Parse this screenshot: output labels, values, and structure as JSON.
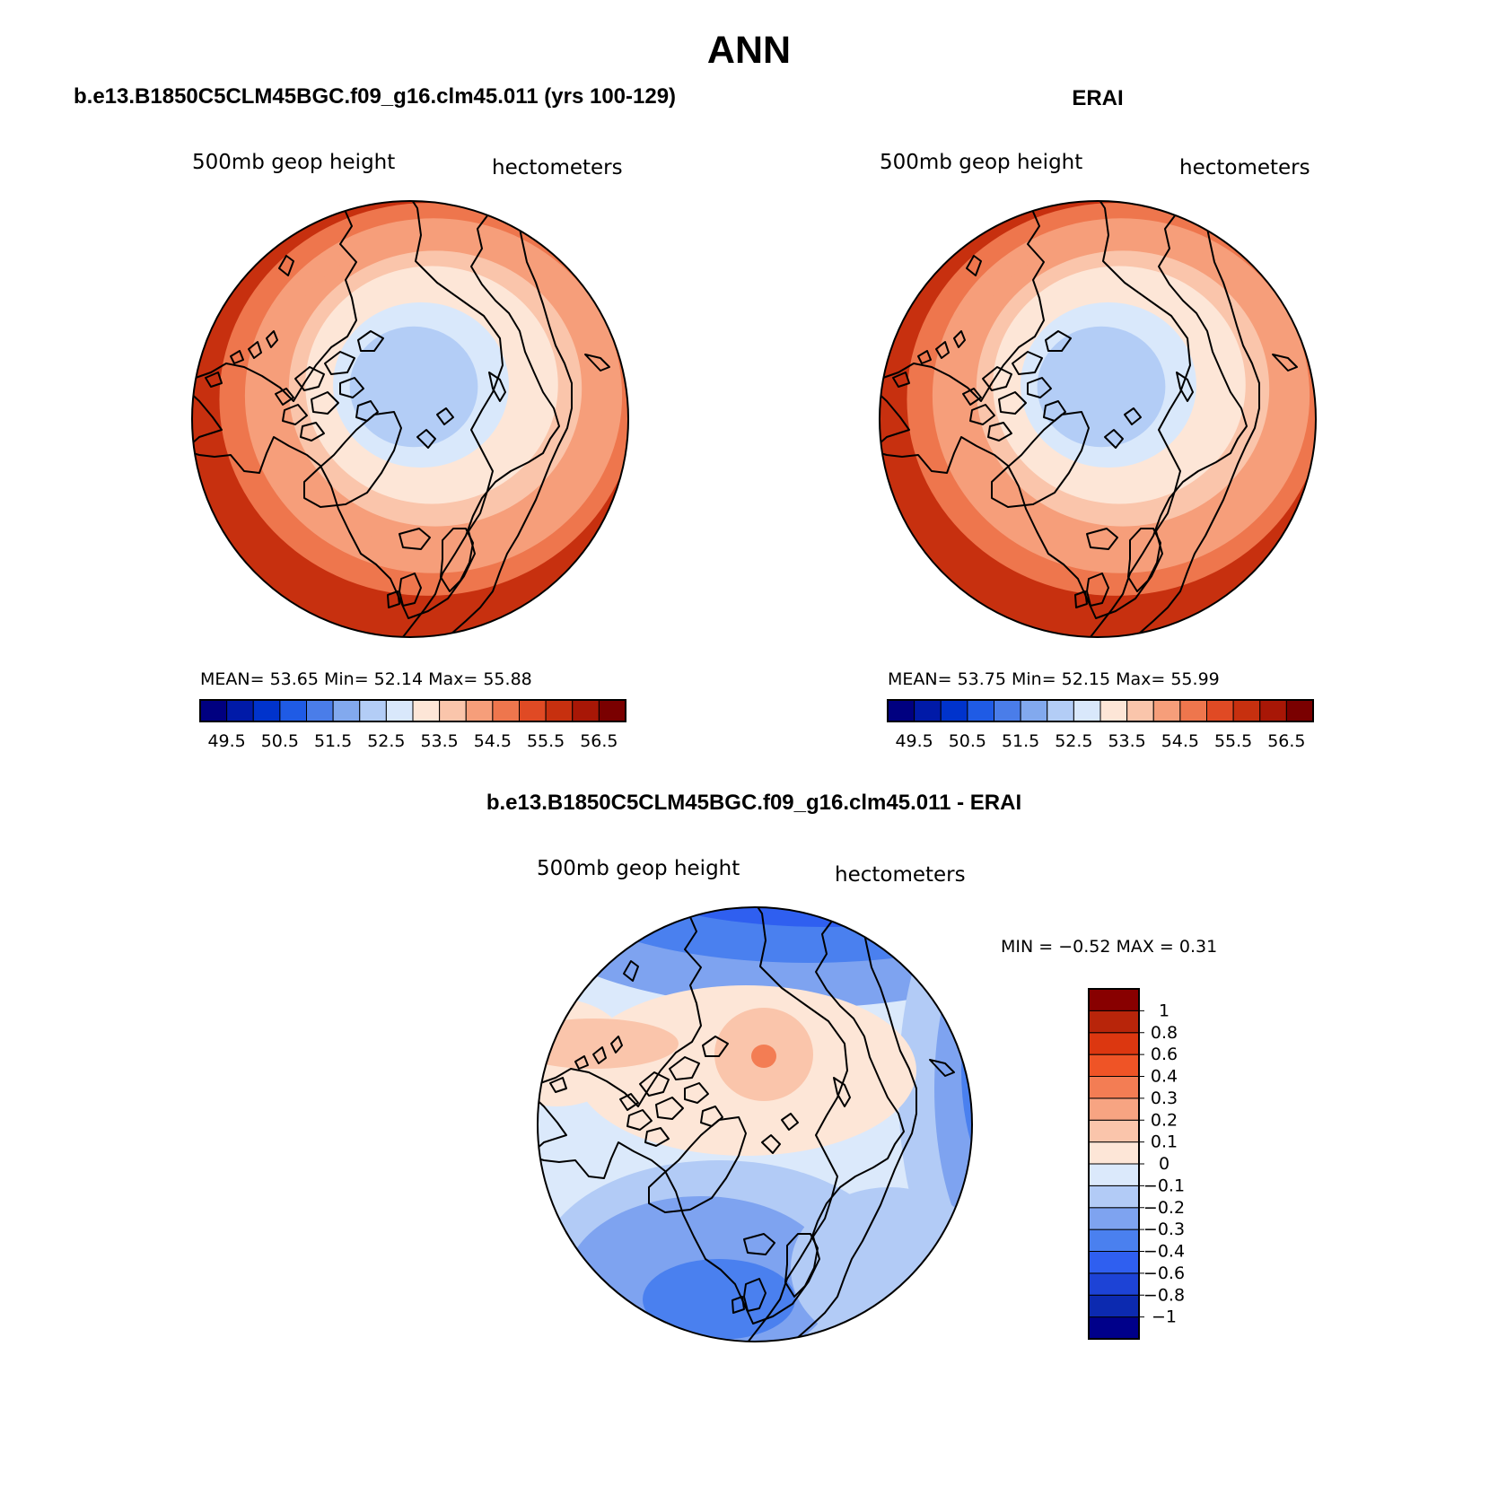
{
  "page": {
    "main_title": "ANN",
    "colors": {
      "background": "#ffffff",
      "outline": "#000000"
    }
  },
  "panels": [
    {
      "title": "b.e13.B1850C5CLM45BGC.f09_g16.clm45.011 (yrs 100-129)",
      "variable": "500mb geop height",
      "units": "hectometers",
      "stats": {
        "mean_label": "MEAN=",
        "mean": "53.65",
        "min_label": "Min=",
        "min": "52.14",
        "max_label": "Max=",
        "max": "55.88"
      },
      "field": {
        "projection": "north-polar-stereographic",
        "low_center": "Canadian Arctic / Baffin",
        "trough_east": "Japan",
        "ring_values": [
          55.5,
          55.0,
          54.5,
          54.0,
          53.5,
          53.0,
          52.5
        ]
      }
    },
    {
      "title": "ERAI",
      "variable": "500mb geop height",
      "units": "hectometers",
      "stats": {
        "mean_label": "MEAN=",
        "mean": "53.75",
        "min_label": "Min=",
        "min": "52.15",
        "max_label": "Max=",
        "max": "55.99"
      },
      "field": {
        "projection": "north-polar-stereographic",
        "low_center": "Canadian Arctic / Baffin",
        "trough_east": "Japan",
        "ring_values": [
          55.5,
          55.0,
          54.5,
          54.0,
          53.5,
          53.0,
          52.5
        ]
      }
    },
    {
      "title": "b.e13.B1850C5CLM45BGC.f09_g16.clm45.011 - ERAI",
      "variable": "500mb geop height",
      "units": "hectometers",
      "stats": {
        "min_label": "MIN =",
        "min": "−0.52",
        "max_label": "MAX =",
        "max": "0.31"
      },
      "field": {
        "projection": "north-polar-stereographic",
        "positive_center": "Arctic Ocean / Siberia",
        "negative_regions": [
          "North Pacific",
          "North Atlantic / Greenland"
        ]
      }
    }
  ],
  "colorbars": {
    "abs": {
      "colors": [
        "#000080",
        "#001aa8",
        "#0033cc",
        "#1f5be5",
        "#4a7de9",
        "#82a9ee",
        "#b3cdf6",
        "#d9e8fb",
        "#fde6d7",
        "#fac5ab",
        "#f69e7a",
        "#ee764d",
        "#e04a24",
        "#c7300f",
        "#a81706",
        "#7a0000"
      ],
      "labels": [
        "49.5",
        "50.5",
        "51.5",
        "52.5",
        "53.5",
        "54.5",
        "55.5",
        "56.5"
      ]
    },
    "diff": {
      "colors": [
        "#00008a",
        "#0c2ab0",
        "#1d43d6",
        "#2f5ff0",
        "#4a80ef",
        "#7ea3f0",
        "#b2cbf6",
        "#dbe9fb",
        "#fde6d7",
        "#fac5ab",
        "#f7a482",
        "#f37d54",
        "#ef5426",
        "#dc3710",
        "#b8250a",
        "#880000"
      ],
      "labels": [
        "1",
        "0.8",
        "0.6",
        "0.4",
        "0.3",
        "0.2",
        "0.1",
        "0",
        "−0.1",
        "−0.2",
        "−0.3",
        "−0.4",
        "−0.6",
        "−0.8",
        "−1"
      ]
    }
  }
}
